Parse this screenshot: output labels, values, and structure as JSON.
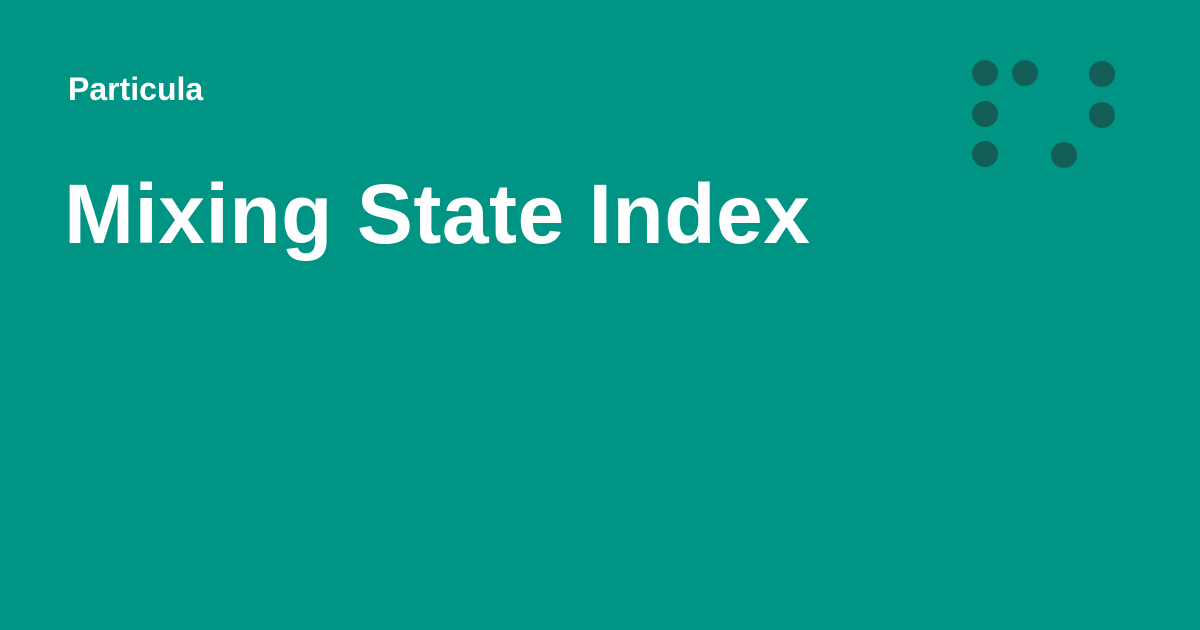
{
  "site": {
    "name": "Particula"
  },
  "page": {
    "title": "Mixing State Index"
  },
  "colors": {
    "background": "#009485",
    "text": "#ffffff",
    "logo_dot": "#135e56"
  },
  "logo": {
    "icon": "dot-grid-logo-icon"
  }
}
